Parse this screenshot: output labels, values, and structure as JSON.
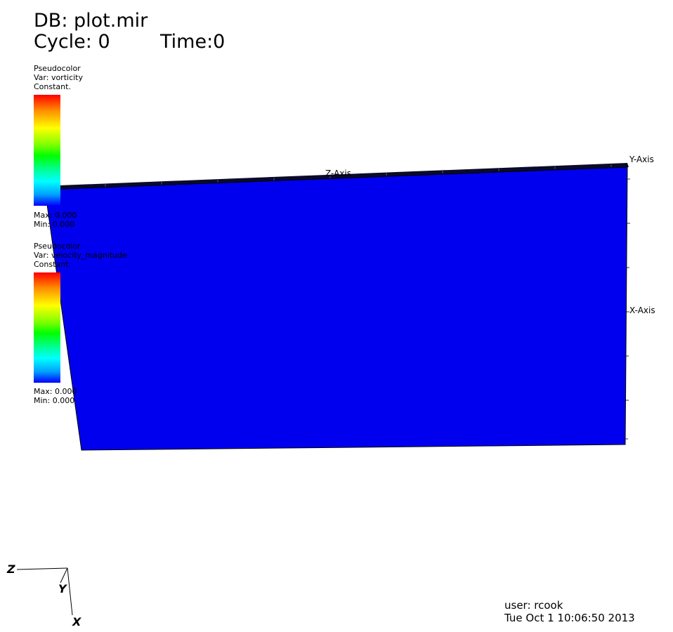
{
  "header": {
    "db_label": "DB: plot.mir",
    "cycle_label": "Cycle: 0",
    "time_label": "Time:0"
  },
  "legends": [
    {
      "plot_type": "Pseudocolor",
      "var_label": "Var: vorticity",
      "constant_label": "Constant.",
      "max_label": "Max:  0.000",
      "min_label": "Min:  0.000"
    },
    {
      "plot_type": "Pseudocolor",
      "var_label": "Var: velocity_magnitude",
      "constant_label": "Constant.",
      "max_label": "Max:  0.000",
      "min_label": "Min:  0.000"
    }
  ],
  "axes": {
    "z_axis_label": "Z-Axis",
    "x_axis_label": "X-Axis",
    "y_axis_label": "Y-Axis"
  },
  "triad": {
    "z": "Z",
    "y": "Y",
    "x": "X"
  },
  "footer": {
    "user_label": "user: rcook",
    "date_label": "Tue Oct  1 10:06:50 2013"
  },
  "colors": {
    "surface": "#0000ee",
    "edge": "#101030"
  }
}
